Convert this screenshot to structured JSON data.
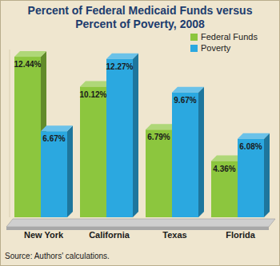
{
  "chart_data": {
    "type": "bar",
    "title": "Percent of Federal Medicaid Funds versus Percent of Poverty, 2008",
    "categories": [
      "New York",
      "California",
      "Texas",
      "Florida"
    ],
    "series": [
      {
        "name": "Federal Funds",
        "color": "#8cc63e",
        "values": [
          12.44,
          10.12,
          6.79,
          4.36
        ],
        "value_labels": [
          "12.44%",
          "10.12%",
          "6.79%",
          "4.36%"
        ]
      },
      {
        "name": "Poverty",
        "color": "#2ba8e0",
        "values": [
          6.67,
          12.27,
          9.67,
          6.08
        ],
        "value_labels": [
          "6.67%",
          "12.27%",
          "9.67%",
          "6.08%"
        ]
      }
    ],
    "ylim": [
      0,
      13
    ],
    "data_labels": true,
    "tick_labels": "x",
    "legend": "top-right",
    "grid": false,
    "source": "Source: Authors' calculations."
  }
}
